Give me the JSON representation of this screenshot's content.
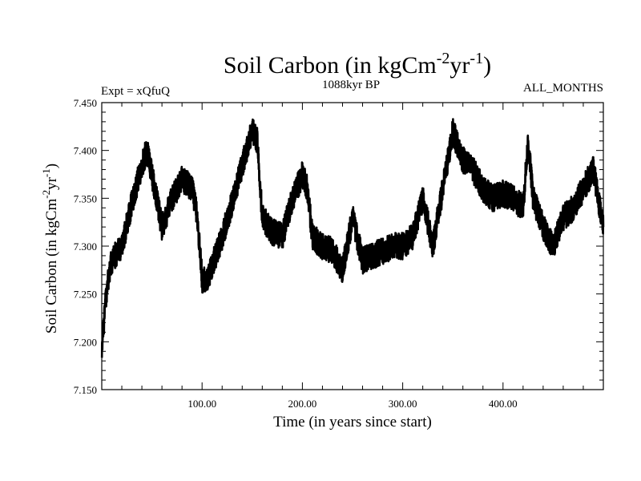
{
  "chart_data": {
    "type": "line",
    "title": "Soil Carbon (in kgCm-2yr-1)",
    "title_parts": {
      "main": "Soil Carbon (in kgCm",
      "sup1": "-2",
      "mid": "yr",
      "sup2": "-1",
      "end": ")"
    },
    "left_label": "Expt = xQfuQ",
    "center_label": "1088kyr BP",
    "right_label": "ALL_MONTHS",
    "xlabel": "Time (in years since start)",
    "ylabel": "Soil Carbon (in kgCm-2yr-1)",
    "ylabel_parts": {
      "main": "Soil Carbon (in kgCm",
      "sup1": "-2",
      "mid": "yr",
      "sup2": "-1",
      "end": ")"
    },
    "xlim": [
      0,
      500
    ],
    "ylim": [
      7.15,
      7.45
    ],
    "x_ticks": [
      100,
      200,
      300,
      400
    ],
    "x_tick_labels": [
      "100.00",
      "200.00",
      "300.00",
      "400.00"
    ],
    "y_ticks": [
      7.15,
      7.2,
      7.25,
      7.3,
      7.35,
      7.4,
      7.45
    ],
    "y_tick_labels": [
      "7.150",
      "7.200",
      "7.250",
      "7.300",
      "7.350",
      "7.400",
      "7.450"
    ],
    "series": [
      {
        "name": "Soil Carbon",
        "color": "#000000",
        "x": [
          0,
          5,
          10,
          20,
          30,
          40,
          45,
          50,
          60,
          70,
          80,
          90,
          95,
          100,
          105,
          110,
          120,
          130,
          140,
          150,
          155,
          160,
          170,
          180,
          190,
          200,
          205,
          210,
          220,
          230,
          240,
          250,
          260,
          270,
          280,
          290,
          300,
          310,
          320,
          330,
          340,
          350,
          360,
          370,
          380,
          390,
          400,
          410,
          420,
          425,
          430,
          440,
          450,
          460,
          470,
          480,
          490,
          500
        ],
        "y": [
          7.195,
          7.255,
          7.285,
          7.3,
          7.345,
          7.385,
          7.4,
          7.375,
          7.32,
          7.35,
          7.37,
          7.36,
          7.335,
          7.265,
          7.265,
          7.28,
          7.31,
          7.345,
          7.385,
          7.42,
          7.41,
          7.33,
          7.315,
          7.31,
          7.35,
          7.375,
          7.36,
          7.31,
          7.3,
          7.295,
          7.275,
          7.33,
          7.285,
          7.29,
          7.295,
          7.3,
          7.3,
          7.31,
          7.35,
          7.3,
          7.36,
          7.42,
          7.39,
          7.38,
          7.36,
          7.35,
          7.355,
          7.35,
          7.34,
          7.41,
          7.35,
          7.32,
          7.3,
          7.33,
          7.34,
          7.36,
          7.38,
          7.32
        ]
      }
    ]
  }
}
